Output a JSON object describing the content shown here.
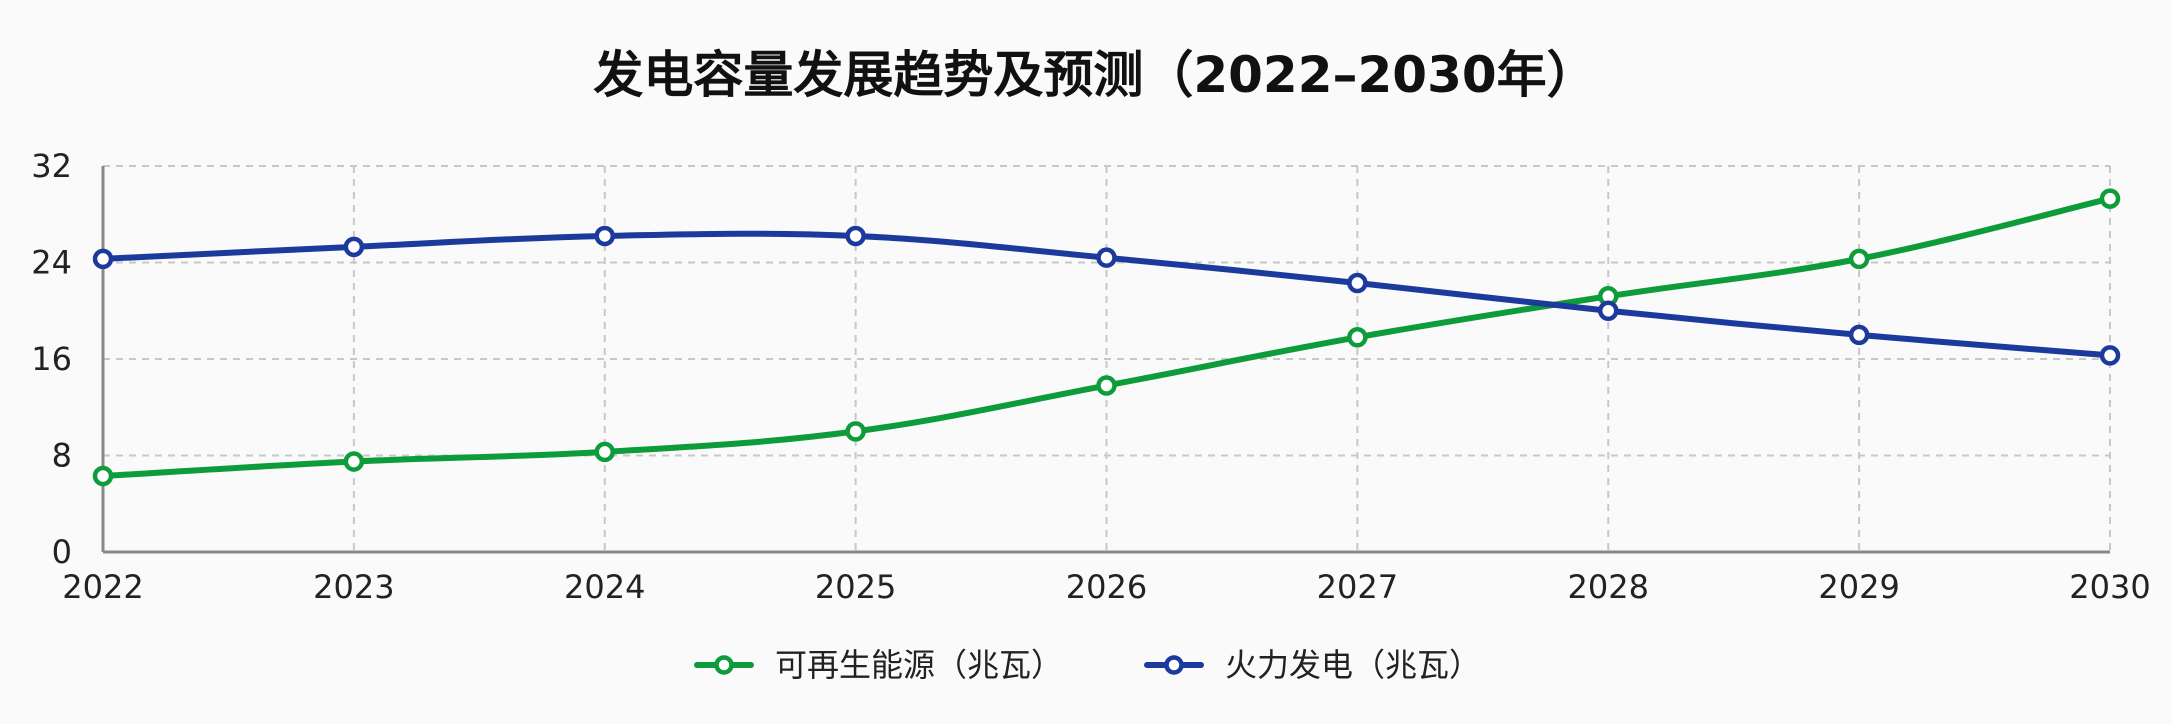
{
  "chart_data": {
    "type": "line",
    "title": "发电容量发展趋势及预测（2022–2030年）",
    "xlabel": "",
    "ylabel": "",
    "categories": [
      "2022",
      "2023",
      "2024",
      "2025",
      "2026",
      "2027",
      "2028",
      "2029",
      "2030"
    ],
    "ylim": [
      0,
      32
    ],
    "yticks": [
      "0",
      "8",
      "16",
      "24",
      "32"
    ],
    "grid": true,
    "legend_position": "bottom-center",
    "series": [
      {
        "name": "可再生能源（兆瓦）",
        "color": "#0e9c3a",
        "values": [
          6.3,
          7.5,
          8.3,
          10.0,
          13.8,
          17.8,
          21.2,
          24.3,
          29.3
        ]
      },
      {
        "name": "火力发电（兆瓦）",
        "color": "#1c3a9c",
        "values": [
          24.3,
          25.3,
          26.2,
          26.2,
          24.4,
          22.3,
          20.0,
          18.0,
          16.3
        ]
      }
    ]
  }
}
